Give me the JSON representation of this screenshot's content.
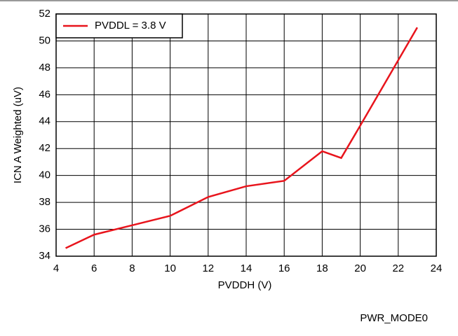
{
  "chart_data": {
    "type": "line",
    "x_label": "PVDDH (V)",
    "y_label": "ICN A Weighted (uV)",
    "footer": "PWR_MODE0",
    "x": [
      4.5,
      6,
      8,
      10,
      12,
      14,
      16,
      18,
      19,
      20,
      23
    ],
    "series": [
      {
        "name": "PVDDL = 3.8 V",
        "color": "#e8141c",
        "values": [
          34.6,
          35.6,
          36.3,
          37.0,
          38.4,
          39.2,
          39.6,
          41.8,
          41.3,
          43.7,
          51.0
        ]
      }
    ],
    "xlim": [
      4,
      24
    ],
    "xticks": [
      4,
      6,
      8,
      10,
      12,
      14,
      16,
      18,
      20,
      22,
      24
    ],
    "ylim": [
      34,
      52
    ],
    "yticks": [
      34,
      36,
      38,
      40,
      42,
      44,
      46,
      48,
      50,
      52
    ],
    "grid": true,
    "legend": "upper-left"
  }
}
